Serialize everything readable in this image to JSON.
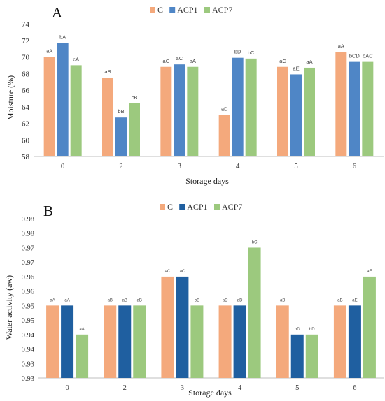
{
  "chart_data": [
    {
      "type": "bar",
      "panel_label": "A",
      "categories": [
        "0",
        "2",
        "3",
        "4",
        "5",
        "6"
      ],
      "xlabel": "Storage days",
      "ylabel": "Moisture (%)",
      "ylim": [
        58,
        74
      ],
      "yticks": [
        "58",
        "60",
        "62",
        "64",
        "66",
        "68",
        "70",
        "72",
        "74"
      ],
      "grid": false,
      "legend_position": "top",
      "series": [
        {
          "name": "C",
          "color": "#F4A97C",
          "values": [
            70.0,
            67.5,
            68.8,
            63.0,
            68.8,
            70.6
          ],
          "labels": [
            "aA",
            "aB",
            "aC",
            "aD",
            "aC",
            "aA"
          ]
        },
        {
          "name": "ACP1",
          "color": "#4F86C6",
          "values": [
            71.7,
            62.7,
            69.1,
            69.9,
            67.9,
            69.4
          ],
          "labels": [
            "bA",
            "bB",
            "aC",
            "bD",
            "aE",
            "bCD"
          ]
        },
        {
          "name": "ACP7",
          "color": "#9CC97E",
          "values": [
            69.0,
            64.4,
            68.8,
            69.8,
            68.7,
            69.4
          ],
          "labels": [
            "cA",
            "cB",
            "aA",
            "bC",
            "aA",
            "bAC"
          ]
        }
      ]
    },
    {
      "type": "bar",
      "panel_label": "B",
      "categories": [
        "0",
        "2",
        "3",
        "4",
        "5",
        "6"
      ],
      "xlabel": "Storage days",
      "ylabel": "Water activity (aw)",
      "ylim": [
        0.925,
        0.98
      ],
      "yticks": [
        "0.93",
        "0.93",
        "0.94",
        "0.94",
        "0.95",
        "0.95",
        "0.96",
        "0.96",
        "0.97",
        "0.97",
        "0.98",
        "0.98"
      ],
      "grid": false,
      "legend_position": "top",
      "series": [
        {
          "name": "C",
          "color": "#F4A97C",
          "values": [
            0.95,
            0.95,
            0.96,
            0.95,
            0.95,
            0.95
          ],
          "labels": [
            "aA",
            "aB",
            "aC",
            "aD",
            "aB",
            "aB"
          ]
        },
        {
          "name": "ACP1",
          "color": "#1F5FA0",
          "values": [
            0.95,
            0.95,
            0.96,
            0.95,
            0.94,
            0.95
          ],
          "labels": [
            "aA",
            "aB",
            "aC",
            "aD",
            "bD",
            "aE"
          ]
        },
        {
          "name": "ACP7",
          "color": "#9CC97E",
          "values": [
            0.94,
            0.95,
            0.95,
            0.97,
            0.94,
            0.96
          ],
          "labels": [
            "aA",
            "aB",
            "bB",
            "bC",
            "bD",
            "aE"
          ]
        }
      ]
    }
  ]
}
